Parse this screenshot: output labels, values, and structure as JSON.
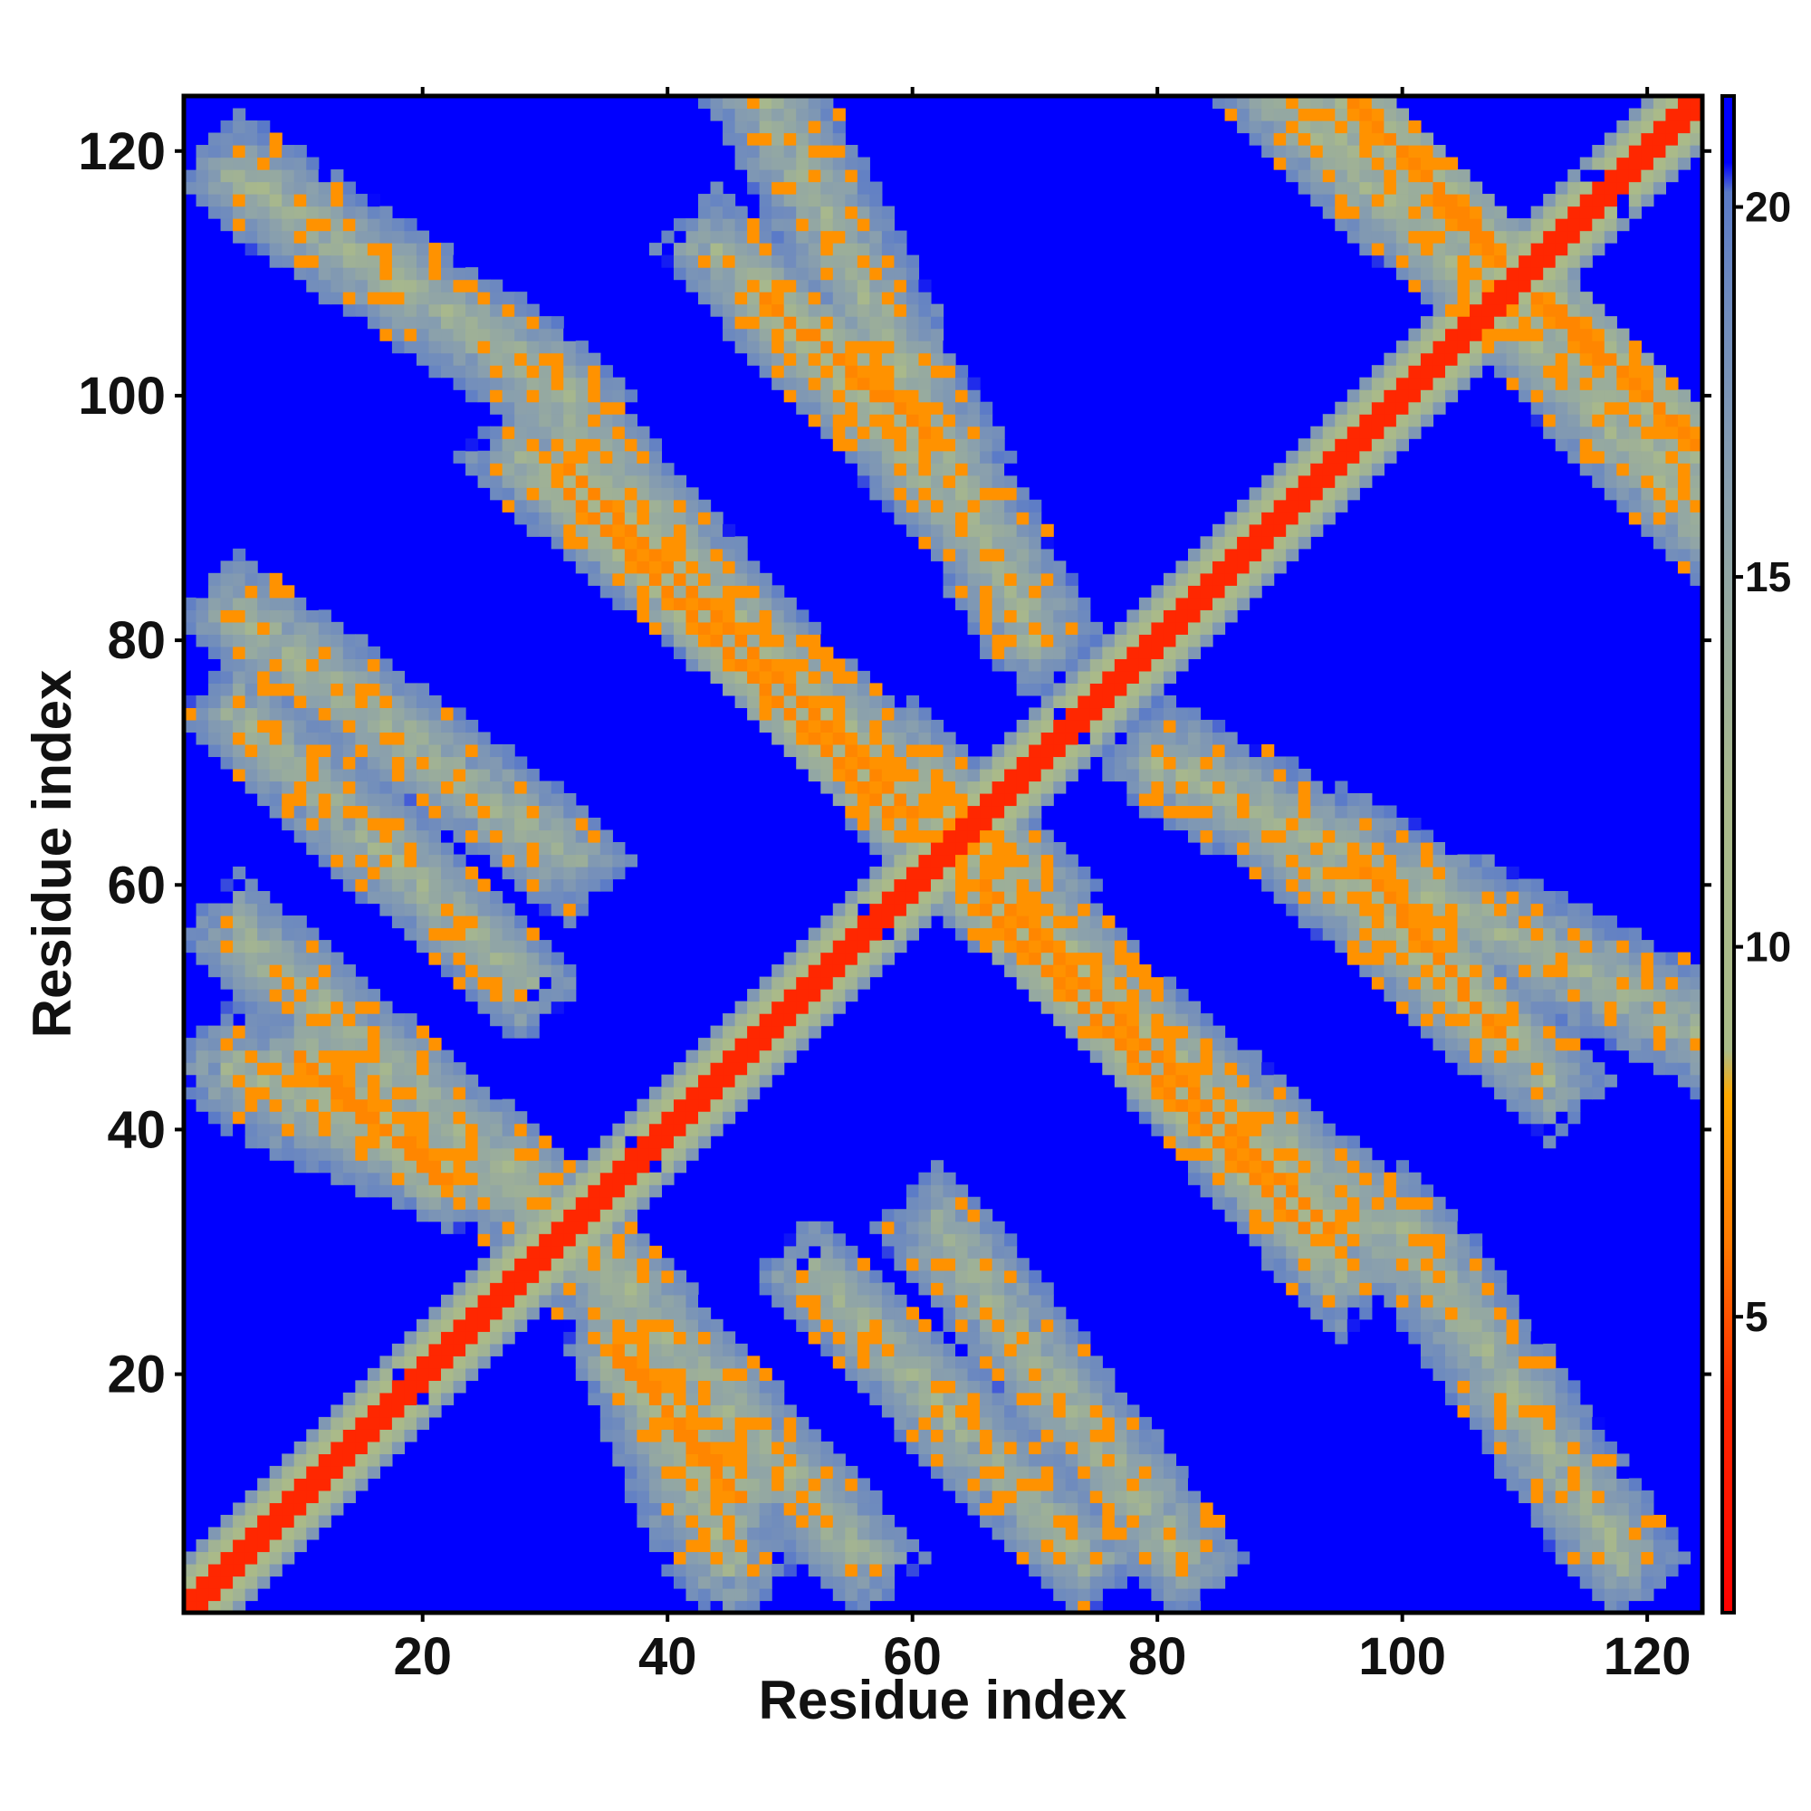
{
  "chart_data": {
    "type": "heatmap",
    "title": "",
    "xlabel": "Residue index",
    "ylabel": "Residue index",
    "n_residues": 124,
    "xlim": [
      1,
      124
    ],
    "ylim": [
      1,
      124
    ],
    "x_ticks": [
      20,
      40,
      60,
      80,
      100,
      120
    ],
    "y_ticks": [
      20,
      40,
      60,
      80,
      100,
      120
    ],
    "colorbar": {
      "ticks": [
        5,
        10,
        15,
        20
      ],
      "range": [
        1,
        21.5
      ],
      "stops": [
        {
          "value": 1.0,
          "color": "#ff0000"
        },
        {
          "value": 4.0,
          "color": "#ff2a00"
        },
        {
          "value": 6.0,
          "color": "#ff7a00"
        },
        {
          "value": 8.0,
          "color": "#ffaa00"
        },
        {
          "value": 8.6,
          "color": "#aabb88"
        },
        {
          "value": 12.0,
          "color": "#a9b98b"
        },
        {
          "value": 16.0,
          "color": "#8aa0ad"
        },
        {
          "value": 19.0,
          "color": "#6b88c0"
        },
        {
          "value": 20.2,
          "color": "#5a7ac8"
        },
        {
          "value": 20.6,
          "color": "#0000ff"
        },
        {
          "value": 21.5,
          "color": "#0000ff"
        }
      ]
    },
    "background_value": 21,
    "diagonal": {
      "from": 1,
      "to": 124,
      "value": 3.8
    },
    "contact_bands": [
      {
        "x_range": [
          10,
          22
        ],
        "y_range": [
          46,
          36
        ],
        "value": 6.5
      },
      {
        "x_range": [
          36,
          45
        ],
        "y_range": [
          21,
          11
        ],
        "value": 6.5
      },
      {
        "x_range": [
          32,
          60
        ],
        "y_range": [
          94,
          66
        ],
        "value": 6.5
      },
      {
        "x_range": [
          48,
          61
        ],
        "y_range": [
          108,
          97
        ],
        "value": 6.5
      },
      {
        "x_range": [
          66,
          92
        ],
        "y_range": [
          58,
          32
        ],
        "value": 6.5
      },
      {
        "x_range": [
          97,
          108
        ],
        "y_range": [
          61,
          48
        ],
        "value": 6.5
      },
      {
        "x_range": [
          96,
          107
        ],
        "y_range": [
          124,
          113
        ],
        "value": 6.5
      },
      {
        "x_range": [
          110,
          124
        ],
        "y_range": [
          109,
          96
        ],
        "value": 6.5
      }
    ],
    "neighborhood_bands": [
      {
        "x_range": [
          4,
          30
        ],
        "y_range": [
          45,
          34
        ],
        "value": 12
      },
      {
        "x_range": [
          5,
          32
        ],
        "y_range": [
          118,
          100
        ],
        "value": 12
      },
      {
        "x_range": [
          5,
          32
        ],
        "y_range": [
          82,
          62
        ],
        "value": 12
      },
      {
        "x_range": [
          30,
          65
        ],
        "y_range": [
          100,
          60
        ],
        "value": 12
      },
      {
        "x_range": [
          34,
          56
        ],
        "y_range": [
          30,
          5
        ],
        "value": 12
      },
      {
        "x_range": [
          52,
          74
        ],
        "y_range": [
          28,
          5
        ],
        "value": 12
      },
      {
        "x_range": [
          60,
          95
        ],
        "y_range": [
          70,
          28
        ],
        "value": 12
      },
      {
        "x_range": [
          80,
          124
        ],
        "y_range": [
          70,
          48
        ],
        "value": 12
      },
      {
        "x_range": [
          90,
          124
        ],
        "y_range": [
          124,
          92
        ],
        "value": 12
      },
      {
        "x_range": [
          44,
          66
        ],
        "y_range": [
          112,
          88
        ],
        "value": 12
      }
    ]
  }
}
